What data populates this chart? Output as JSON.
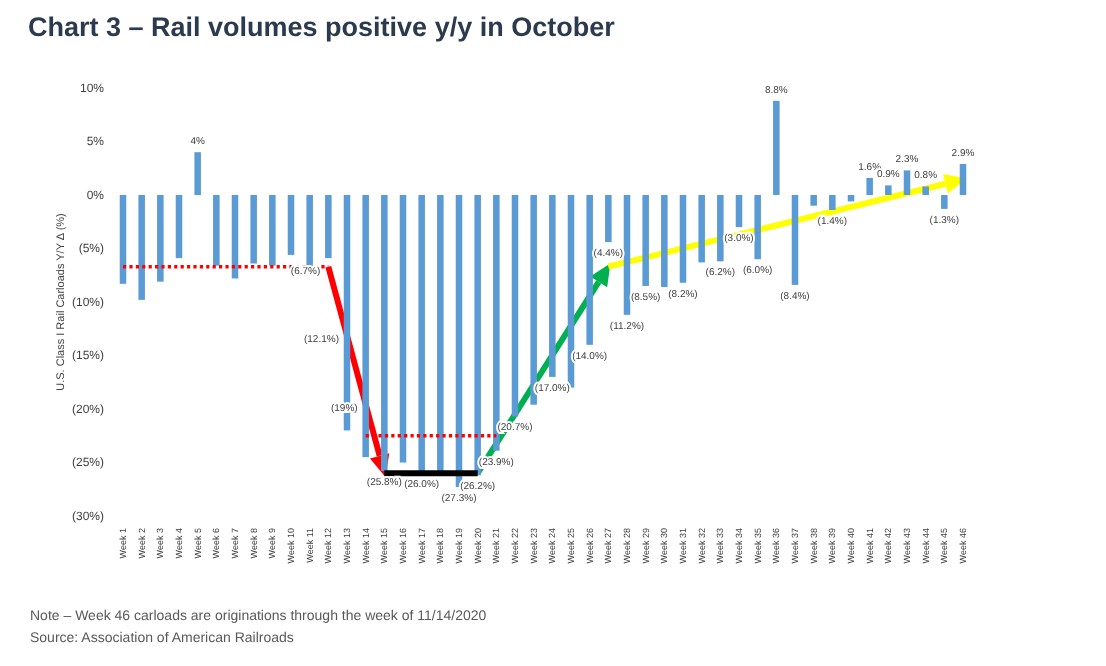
{
  "chart_data": {
    "type": "bar",
    "title": "Chart 3 – Rail volumes positive y/y in October",
    "ylabel": "U.S. Class I Rail Carloads Y/Y Δ (%)",
    "categories": [
      "Week 1",
      "Week 2",
      "Week 3",
      "Week 4",
      "Week 5",
      "Week 6",
      "Week 7",
      "Week 8",
      "Week 9",
      "Week 10",
      "Week 11",
      "Week 12",
      "Week 13",
      "Week 14",
      "Week 15",
      "Week 16",
      "Week 17",
      "Week 18",
      "Week 19",
      "Week 20",
      "Week 21",
      "Week 22",
      "Week 23",
      "Week 24",
      "Week 25",
      "Week 26",
      "Week 27",
      "Week 28",
      "Week 29",
      "Week 30",
      "Week 31",
      "Week 32",
      "Week 33",
      "Week 34",
      "Week 35",
      "Week 36",
      "Week 37",
      "Week 38",
      "Week 39",
      "Week 40",
      "Week 41",
      "Week 42",
      "Week 43",
      "Week 44",
      "Week 45",
      "Week 46"
    ],
    "series": [
      {
        "color": "#5b9bd5",
        "values": [
          -8.3,
          -9.8,
          -8.1,
          -5.9,
          4.0,
          -6.6,
          -7.8,
          -6.4,
          -6.6,
          -5.6,
          -7.2,
          -5.9,
          -22.0,
          -24.5,
          -25.8,
          -25.0,
          -26.0,
          -26.0,
          -27.3,
          -26.2,
          -23.9,
          -20.7,
          -19.6,
          -17.0,
          -18.0,
          -14.0,
          -4.4,
          -11.2,
          -8.5,
          -8.6,
          -8.2,
          -6.3,
          -6.2,
          -3.0,
          -6.0,
          8.8,
          -8.4,
          -1.0,
          -1.4,
          -0.6,
          1.6,
          0.9,
          2.3,
          0.8,
          -1.3,
          2.9
        ],
        "value_labels": [
          null,
          null,
          null,
          null,
          "4%",
          null,
          null,
          null,
          null,
          null,
          null,
          null,
          null,
          null,
          "(25.8%)",
          null,
          "(26.0%)",
          null,
          "(27.3%)",
          "(26.2%)",
          "(23.9%)",
          "(20.7%)",
          null,
          "(17.0%)",
          null,
          "(14.0%)",
          "(4.4%)",
          "(11.2%)",
          "(8.5%)",
          null,
          "(8.2%)",
          null,
          "(6.2%)",
          "(3.0%)",
          "(6.0%)",
          "8.8%",
          "(8.4%)",
          null,
          "(1.4%)",
          null,
          "1.6%",
          "0.9%",
          "2.3%",
          "0.8%",
          "(1.3%)",
          "2.9%"
        ]
      },
      {
        "type": "line",
        "color": "#ff0000",
        "line_style": "dotted",
        "x": [
          "Week 1",
          "Week 12"
        ],
        "values": [
          -6.7,
          -6.7
        ]
      },
      {
        "type": "line",
        "color": "#ff0000",
        "line_style": "dotted",
        "x": [
          "Week 14",
          "Week 21"
        ],
        "values": [
          -22.5,
          -22.5
        ]
      },
      {
        "type": "line",
        "color": "#000000",
        "line_style": "solid",
        "x": [
          "Week 15",
          "Week 20"
        ],
        "values": [
          -26.0,
          -26.0
        ]
      }
    ],
    "ylim": [
      -30,
      10
    ],
    "yticks": [
      {
        "value": 10,
        "label": "10%"
      },
      {
        "value": 5,
        "label": "5%"
      },
      {
        "value": 0,
        "label": "0%"
      },
      {
        "value": -5,
        "label": "(5%)"
      },
      {
        "value": -10,
        "label": "(10%)"
      },
      {
        "value": -15,
        "label": "(15%)"
      },
      {
        "value": -20,
        "label": "(20%)"
      },
      {
        "value": -25,
        "label": "(25%)"
      },
      {
        "value": -30,
        "label": "(30%)"
      }
    ],
    "grid": false,
    "annotations": [
      {
        "text": "(6.7%)",
        "x": "Week 12",
        "y": -6.7
      },
      {
        "text": "(12.1%)",
        "x": "Week 13",
        "y": -13.1
      },
      {
        "text": "(19%)",
        "x": "Week 14",
        "y": -19.5
      },
      "Note – Week 46 carloads are originations through the week of 11/14/2020",
      "Source: Association of American Railroads"
    ]
  }
}
